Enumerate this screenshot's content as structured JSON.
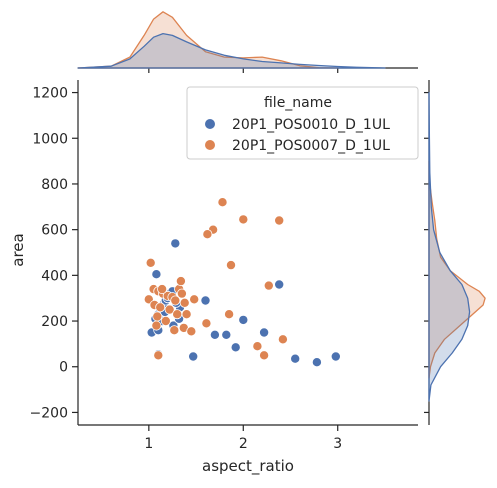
{
  "chart_data": {
    "type": "scatter",
    "title": "",
    "xlabel": "aspect_ratio",
    "ylabel": "area",
    "xlim": [
      0.25,
      3.85
    ],
    "ylim": [
      -255,
      1255
    ],
    "x_ticks": [
      "1",
      "2",
      "3"
    ],
    "x_tick_values": [
      1,
      2,
      3
    ],
    "y_ticks": [
      "−200",
      "0",
      "200",
      "400",
      "600",
      "800",
      "1000",
      "1200"
    ],
    "y_tick_values": [
      -200,
      0,
      200,
      400,
      600,
      800,
      1000,
      1200
    ],
    "grid": false,
    "marginal_plots": "kde",
    "legend": {
      "title": "file_name",
      "placement": "top-right"
    },
    "series": [
      {
        "name": "20P1_POS0010_D_1UL",
        "color": "#4c72b0",
        "points": [
          [
            1.28,
            540
          ],
          [
            1.08,
            405
          ],
          [
            1.03,
            150
          ],
          [
            1.1,
            160
          ],
          [
            1.07,
            210
          ],
          [
            1.1,
            230
          ],
          [
            1.12,
            250
          ],
          [
            1.15,
            270
          ],
          [
            1.18,
            290
          ],
          [
            1.2,
            300
          ],
          [
            1.22,
            320
          ],
          [
            1.25,
            330
          ],
          [
            1.3,
            230
          ],
          [
            1.33,
            260
          ],
          [
            1.14,
            200
          ],
          [
            1.17,
            240
          ],
          [
            1.26,
            180
          ],
          [
            1.29,
            280
          ],
          [
            1.32,
            210
          ],
          [
            1.6,
            290
          ],
          [
            1.47,
            45
          ],
          [
            1.7,
            140
          ],
          [
            1.82,
            140
          ],
          [
            1.92,
            85
          ],
          [
            2.0,
            205
          ],
          [
            2.38,
            360
          ],
          [
            2.55,
            35
          ],
          [
            2.78,
            20
          ],
          [
            2.98,
            45
          ],
          [
            2.22,
            150
          ],
          [
            1.1,
            55
          ]
        ]
      },
      {
        "name": "20P1_POS0007_D_1UL",
        "color": "#dd8452",
        "points": [
          [
            1.78,
            720
          ],
          [
            2.0,
            645
          ],
          [
            2.38,
            640
          ],
          [
            1.68,
            600
          ],
          [
            1.62,
            580
          ],
          [
            1.02,
            455
          ],
          [
            1.87,
            445
          ],
          [
            2.27,
            355
          ],
          [
            1.48,
            295
          ],
          [
            1.0,
            295
          ],
          [
            1.05,
            340
          ],
          [
            1.1,
            330
          ],
          [
            1.15,
            320
          ],
          [
            1.2,
            310
          ],
          [
            1.25,
            305
          ],
          [
            1.28,
            290
          ],
          [
            1.32,
            340
          ],
          [
            1.35,
            320
          ],
          [
            1.38,
            280
          ],
          [
            1.06,
            270
          ],
          [
            1.12,
            260
          ],
          [
            1.22,
            250
          ],
          [
            1.3,
            230
          ],
          [
            1.09,
            220
          ],
          [
            1.18,
            200
          ],
          [
            1.37,
            170
          ],
          [
            1.45,
            155
          ],
          [
            1.27,
            160
          ],
          [
            1.4,
            230
          ],
          [
            1.61,
            190
          ],
          [
            1.85,
            230
          ],
          [
            2.42,
            120
          ],
          [
            2.15,
            90
          ],
          [
            2.22,
            50
          ],
          [
            1.1,
            50
          ],
          [
            1.08,
            180
          ],
          [
            1.34,
            375
          ],
          [
            1.14,
            340
          ]
        ]
      }
    ],
    "marginal_x_kde": [
      {
        "name": "20P1_POS0010_D_1UL",
        "x": [
          0.25,
          0.6,
          0.8,
          0.95,
          1.05,
          1.15,
          1.25,
          1.4,
          1.6,
          1.8,
          2.0,
          2.2,
          2.4,
          2.6,
          2.8,
          3.0,
          3.2,
          3.5
        ],
        "density": [
          0.0,
          0.05,
          0.25,
          0.6,
          0.85,
          0.95,
          0.9,
          0.72,
          0.5,
          0.35,
          0.25,
          0.18,
          0.14,
          0.1,
          0.07,
          0.04,
          0.02,
          0.0
        ]
      },
      {
        "name": "20P1_POS0007_D_1UL",
        "x": [
          0.25,
          0.6,
          0.8,
          0.95,
          1.05,
          1.15,
          1.25,
          1.4,
          1.6,
          1.8,
          2.0,
          2.2,
          2.4,
          2.6,
          2.8,
          3.0
        ],
        "density": [
          0.0,
          0.05,
          0.3,
          0.9,
          1.35,
          1.55,
          1.4,
          0.9,
          0.45,
          0.3,
          0.28,
          0.3,
          0.2,
          0.06,
          0.01,
          0.0
        ]
      }
    ],
    "marginal_y_kde": [
      {
        "name": "20P1_POS0010_D_1UL",
        "y": [
          -150,
          -80,
          0,
          60,
          120,
          180,
          240,
          300,
          360,
          420,
          500,
          600,
          700,
          850,
          1000,
          1100,
          1200
        ],
        "density": [
          0.0,
          0.05,
          0.3,
          0.6,
          0.85,
          1.0,
          1.05,
          1.0,
          0.85,
          0.55,
          0.28,
          0.12,
          0.06,
          0.02,
          0.01,
          0.005,
          0.0
        ]
      },
      {
        "name": "20P1_POS0007_D_1UL",
        "y": [
          -50,
          0,
          60,
          120,
          180,
          240,
          270,
          300,
          330,
          360,
          420,
          480,
          560,
          640,
          720,
          800,
          900
        ],
        "density": [
          0.0,
          0.04,
          0.15,
          0.4,
          0.8,
          1.2,
          1.4,
          1.45,
          1.3,
          1.0,
          0.55,
          0.3,
          0.2,
          0.15,
          0.08,
          0.02,
          0.0
        ]
      }
    ]
  }
}
